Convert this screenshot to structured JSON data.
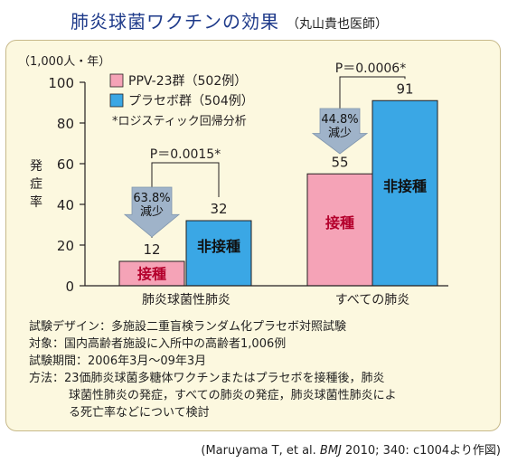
{
  "header": {
    "title": "肺炎球菌ワクチンの効果",
    "subtitle": "（丸山貴也医師）"
  },
  "chart_data": {
    "type": "bar",
    "unit_label": "（1,000人・年）",
    "ylabel": "発症率",
    "ylim": [
      0,
      100
    ],
    "yticks": [
      0,
      20,
      40,
      60,
      80,
      100
    ],
    "categories": [
      "肺炎球菌性肺炎",
      "すべての肺炎"
    ],
    "series": [
      {
        "name": "PPV-23群（502例）",
        "color": "#f5a3b7",
        "values": [
          12,
          55
        ],
        "inside_labels": [
          "接種",
          "接種"
        ]
      },
      {
        "name": "プラセボ群（504例）",
        "color": "#3aa7e5",
        "values": [
          32,
          91
        ],
        "inside_labels": [
          "非接種",
          "非接種"
        ]
      }
    ],
    "legend_note": "*ロジスティック回帰分析",
    "p_values": [
      "P＝0.0015*",
      "P＝0.0006*"
    ],
    "reductions": [
      {
        "percent": "63.8%",
        "label": "減少"
      },
      {
        "percent": "44.8%",
        "label": "減少"
      }
    ]
  },
  "notes": [
    {
      "label": "試験デザイン：",
      "text": "多施設二重盲検ランダム化プラセボ対照試験"
    },
    {
      "label": "対象：",
      "text": "国内高齢者施設に入所中の高齢者1,006例"
    },
    {
      "label": "試験期間：",
      "text": "2006年3月～09年3月"
    },
    {
      "label": "方法：",
      "text": "23価肺炎球菌多糖体ワクチンまたはプラセボを接種後，肺炎"
    }
  ],
  "notes_cont": [
    "球菌性肺炎の発症，すべての肺炎の発症，肺炎球菌性肺炎によ",
    "る死亡率などについて検討"
  ],
  "source": {
    "prefix": "(Maruyama T, et al. ",
    "journal": "BMJ",
    "suffix": " 2010; 340: c1004より作図)"
  }
}
